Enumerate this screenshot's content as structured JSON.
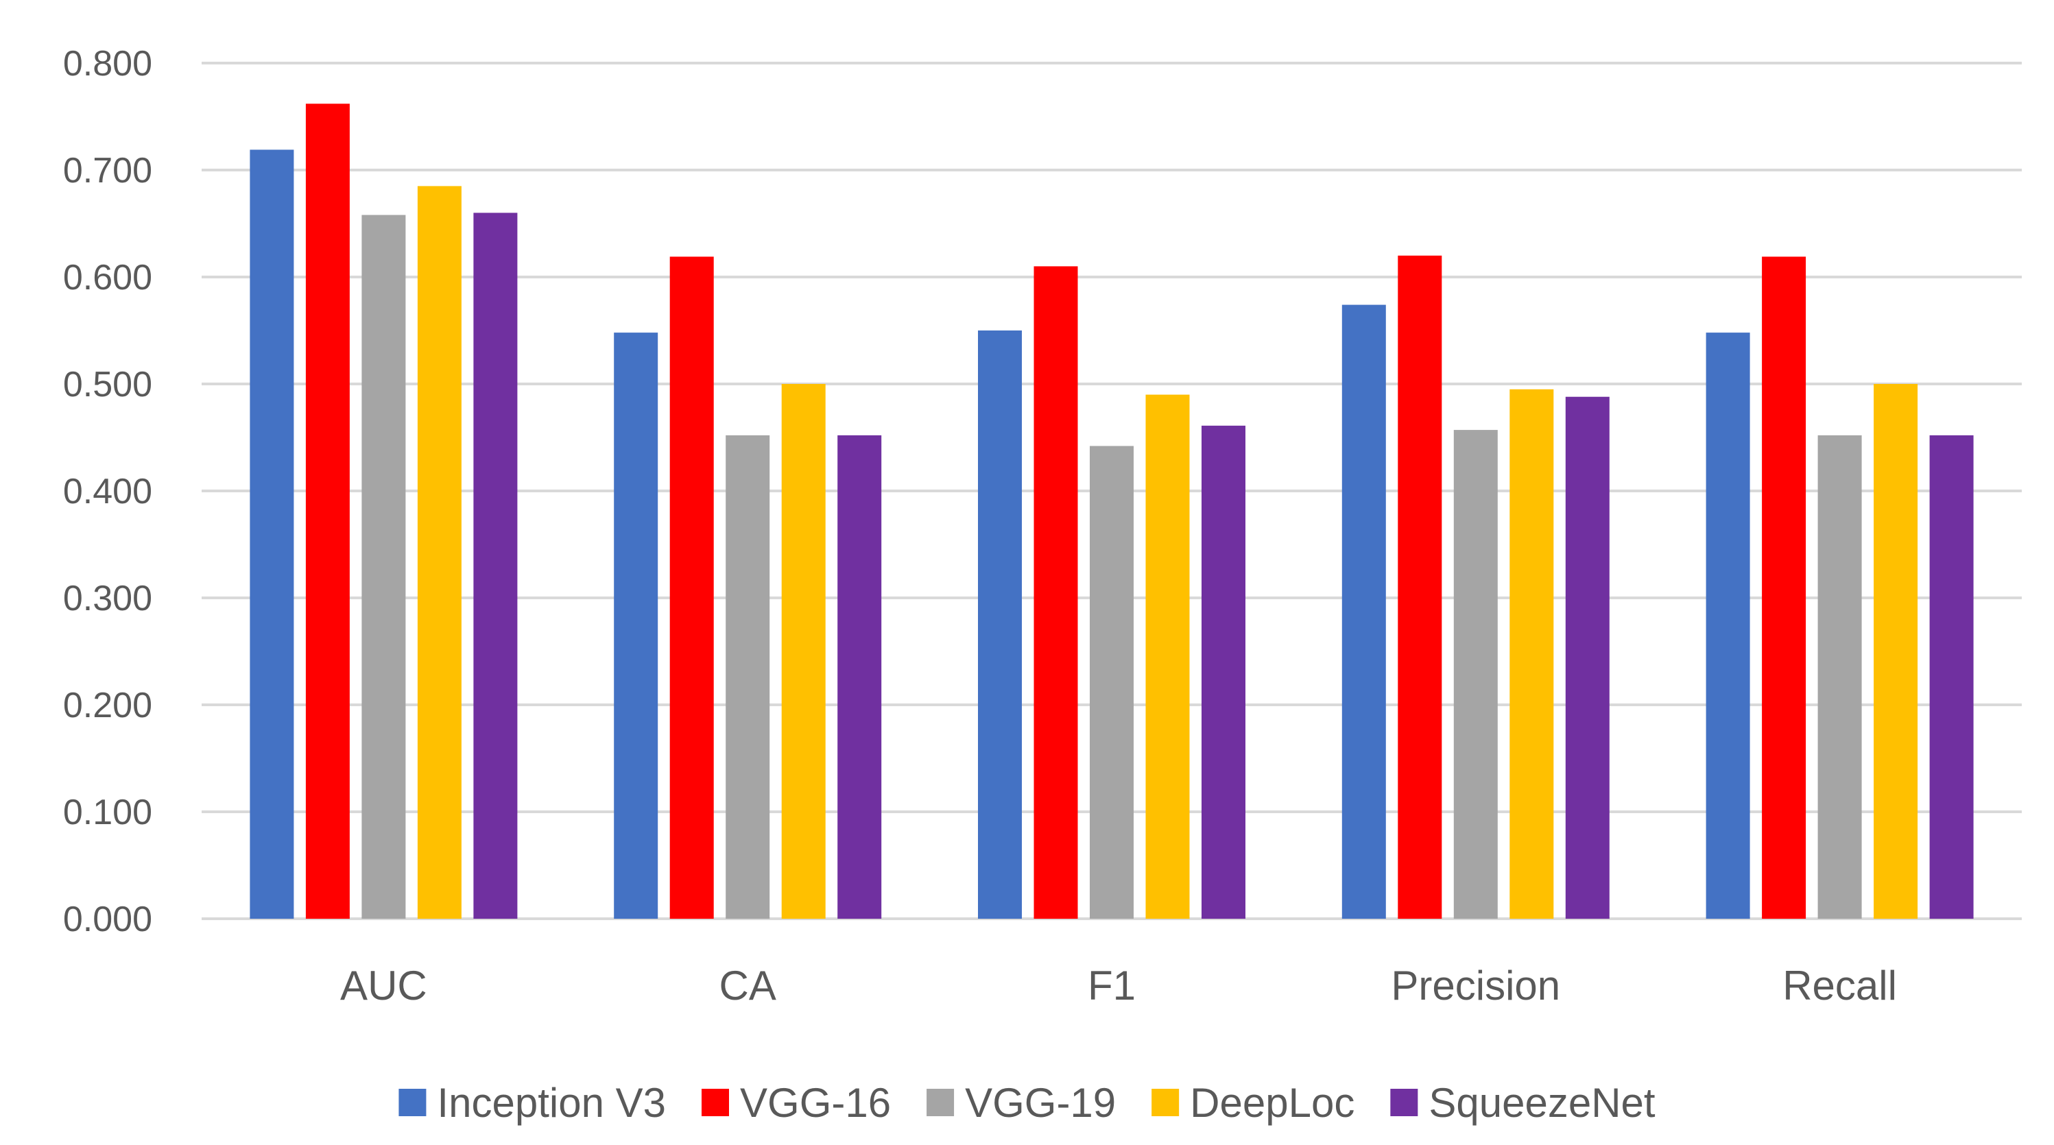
{
  "chart_data": {
    "type": "bar",
    "title": "",
    "xlabel": "",
    "ylabel": "",
    "categories": [
      "AUC",
      "CA",
      "F1",
      "Precision",
      "Recall"
    ],
    "series": [
      {
        "name": "Inception V3",
        "color": "#4472c4",
        "values": [
          0.719,
          0.548,
          0.55,
          0.574,
          0.548
        ]
      },
      {
        "name": "VGG-16",
        "color": "#ff0000",
        "values": [
          0.762,
          0.619,
          0.61,
          0.62,
          0.619
        ]
      },
      {
        "name": "VGG-19",
        "color": "#a5a5a5",
        "values": [
          0.658,
          0.452,
          0.442,
          0.457,
          0.452
        ]
      },
      {
        "name": "DeepLoc",
        "color": "#ffc000",
        "values": [
          0.685,
          0.5,
          0.49,
          0.495,
          0.5
        ]
      },
      {
        "name": "SqueezeNet",
        "color": "#7030a0",
        "values": [
          0.66,
          0.452,
          0.461,
          0.488,
          0.452
        ]
      }
    ],
    "ylim": [
      0,
      0.8
    ],
    "yticks": [
      0.0,
      0.1,
      0.2,
      0.3,
      0.4,
      0.5,
      0.6,
      0.7,
      0.8
    ],
    "ytick_labels": [
      "0.000",
      "0.100",
      "0.200",
      "0.300",
      "0.400",
      "0.500",
      "0.600",
      "0.700",
      "0.800"
    ],
    "grid": true,
    "legend_position": "bottom"
  }
}
